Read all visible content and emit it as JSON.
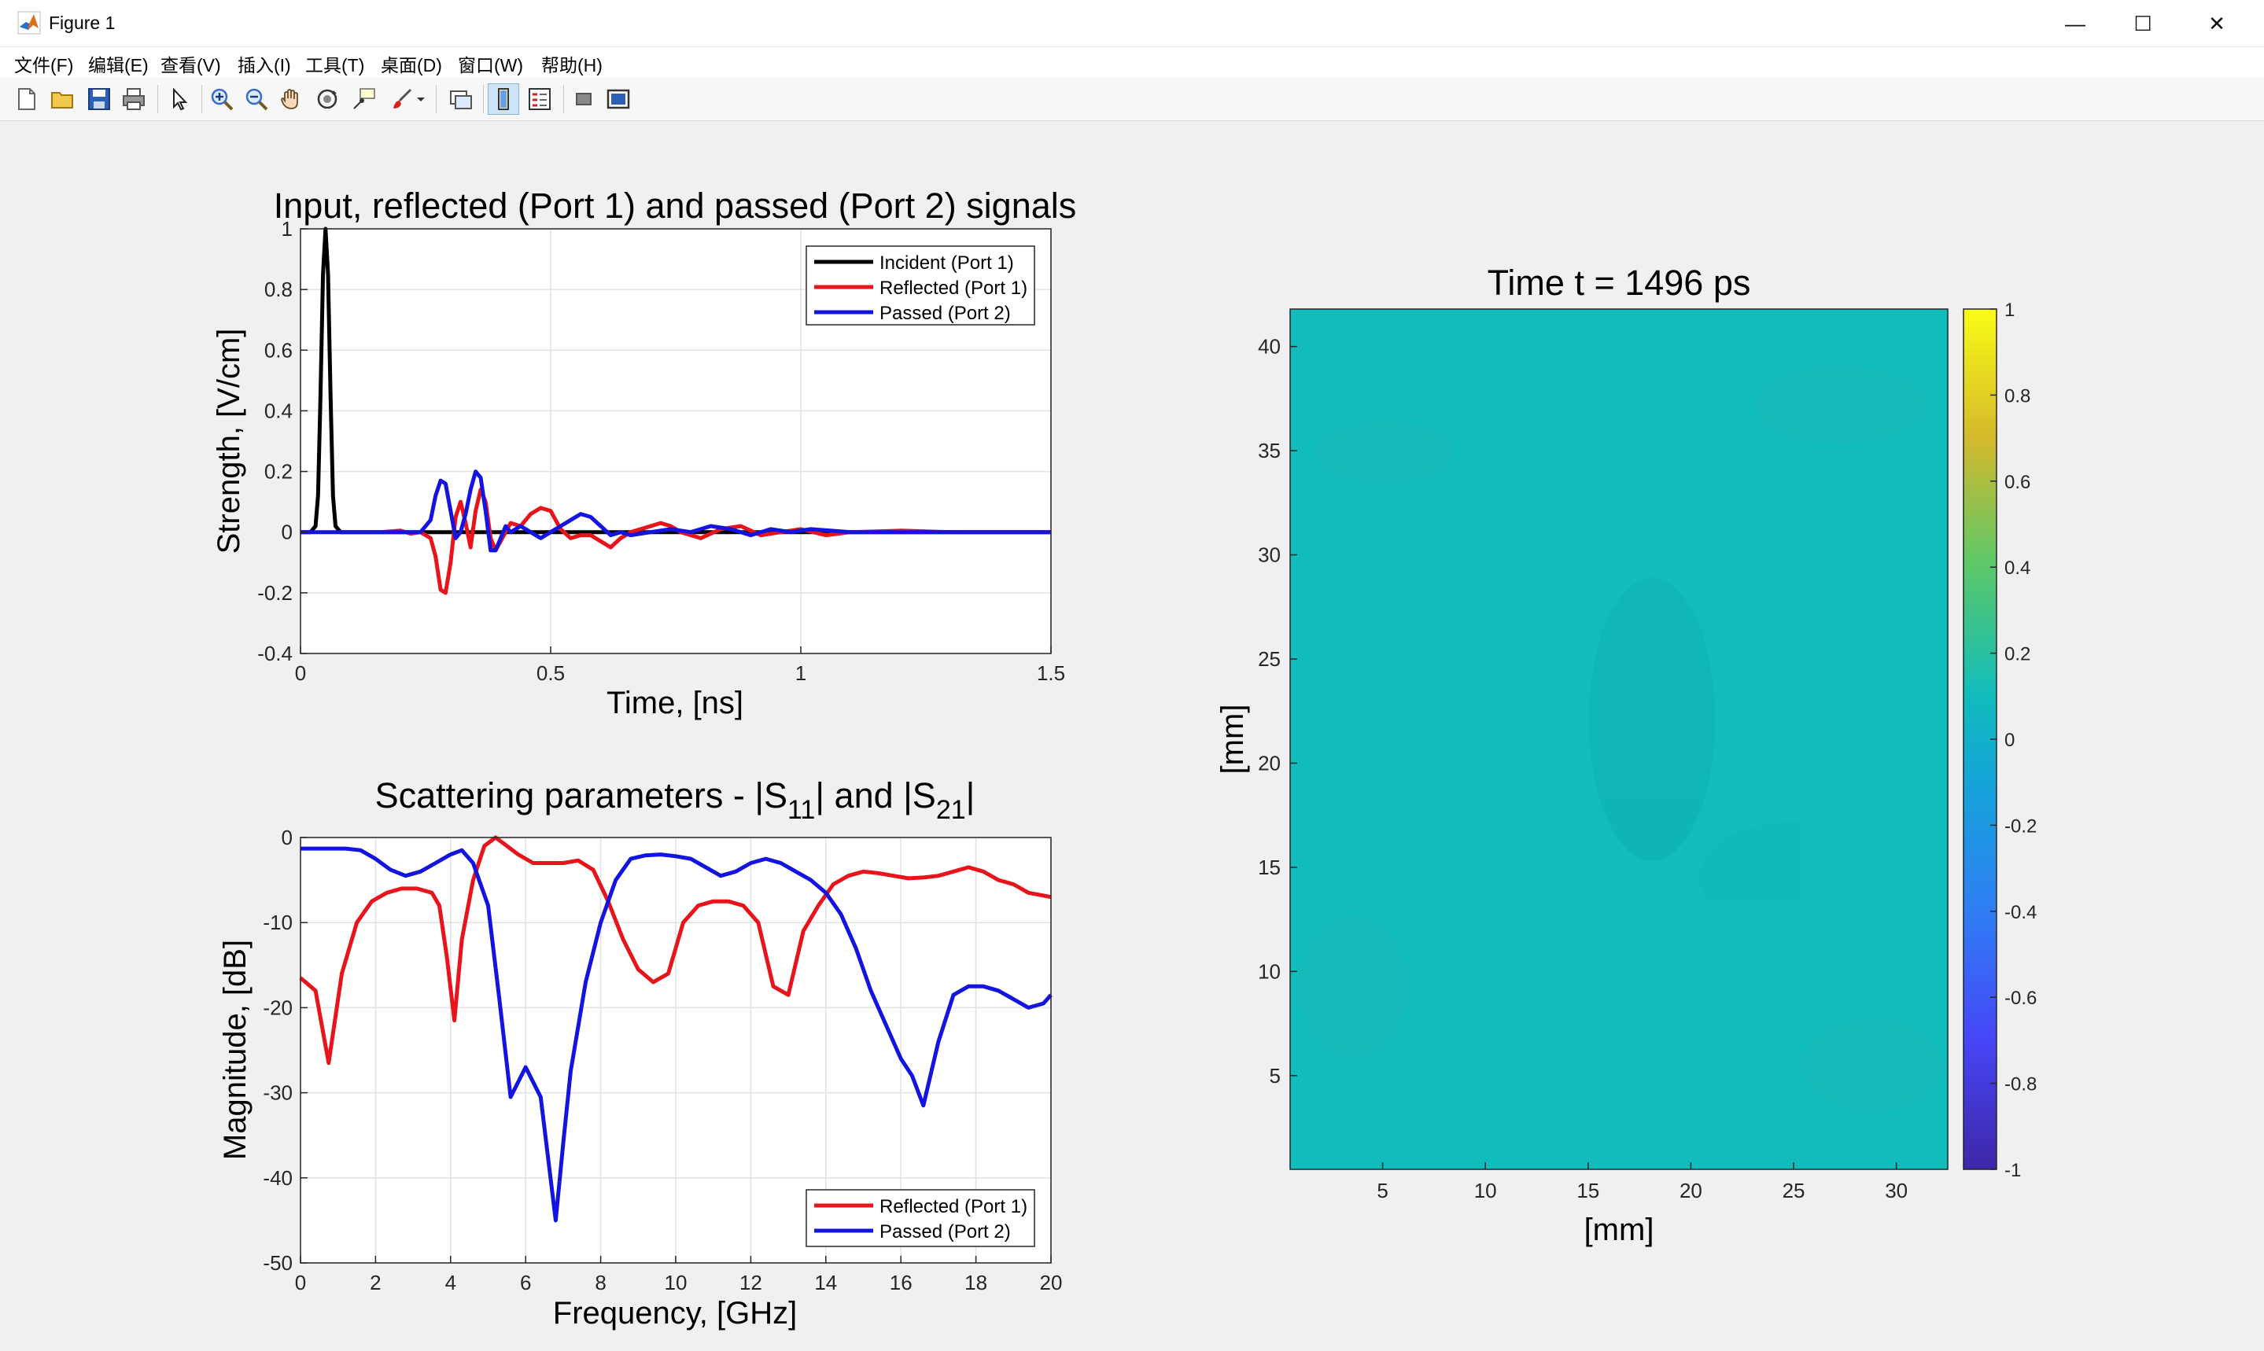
{
  "window": {
    "title": "Figure 1",
    "min_glyph": "—",
    "max_glyph": "☐",
    "close_glyph": "✕"
  },
  "menu": [
    {
      "label": "文件(F)"
    },
    {
      "label": "编辑(E)"
    },
    {
      "label": "查看(V)"
    },
    {
      "label": "插入(I)"
    },
    {
      "label": "工具(T)"
    },
    {
      "label": "桌面(D)"
    },
    {
      "label": "窗口(W)"
    },
    {
      "label": "帮助(H)"
    }
  ],
  "toolbar": [
    "new-figure-icon",
    "open-file-icon",
    "save-icon",
    "print-icon",
    "select-arrow-icon",
    "zoom-in-icon",
    "zoom-out-icon",
    "pan-hand-icon",
    "rotate-3d-icon",
    "data-cursor-icon",
    "brush-icon",
    "brush-dropdown-icon",
    "link-plot-icon",
    "colorbar-icon",
    "legend-icon",
    "hide-tools-icon",
    "show-tools-icon"
  ],
  "colors": {
    "incident": "#000000",
    "reflected": "#e8141c",
    "passed": "#1414e0",
    "field": "#10bcbc"
  },
  "chart_data": [
    {
      "type": "line",
      "title": "Input, reflected (Port 1) and passed (Port 2) signals",
      "xlabel": "Time, [ns]",
      "ylabel": "Strength, [V/cm]",
      "xlim": [
        0,
        1.5
      ],
      "ylim": [
        -0.4,
        1
      ],
      "xticks": [
        "0",
        "0.5",
        "1",
        "1.5"
      ],
      "yticks": [
        "-0.4",
        "-0.2",
        "0",
        "0.2",
        "0.4",
        "0.6",
        "0.8",
        "1"
      ],
      "grid": true,
      "legend_position": "top-right",
      "series": [
        {
          "name": "Incident (Port 1)",
          "color_key": "incident",
          "x": [
            0.0,
            0.02,
            0.03,
            0.035,
            0.04,
            0.045,
            0.05,
            0.055,
            0.06,
            0.065,
            0.07,
            0.08,
            0.1,
            1.5
          ],
          "y": [
            0,
            0,
            0.02,
            0.12,
            0.45,
            0.85,
            1.0,
            0.85,
            0.45,
            0.12,
            0.02,
            0,
            0,
            0
          ]
        },
        {
          "name": "Reflected (Port 1)",
          "color_key": "reflected",
          "x": [
            0.16,
            0.2,
            0.22,
            0.24,
            0.26,
            0.27,
            0.28,
            0.29,
            0.3,
            0.31,
            0.32,
            0.33,
            0.34,
            0.35,
            0.36,
            0.37,
            0.38,
            0.39,
            0.4,
            0.42,
            0.44,
            0.46,
            0.48,
            0.5,
            0.52,
            0.54,
            0.56,
            0.58,
            0.6,
            0.62,
            0.64,
            0.66,
            0.7,
            0.72,
            0.74,
            0.76,
            0.8,
            0.84,
            0.88,
            0.92,
            0.96,
            1.0,
            1.05,
            1.1,
            1.2,
            1.3,
            1.5
          ],
          "y": [
            0,
            0.005,
            -0.005,
            0,
            -0.02,
            -0.08,
            -0.19,
            -0.2,
            -0.1,
            0.05,
            0.1,
            0.03,
            -0.05,
            0.07,
            0.14,
            0.1,
            -0.02,
            -0.06,
            -0.03,
            0.03,
            0.02,
            0.06,
            0.08,
            0.07,
            0.01,
            -0.02,
            -0.01,
            -0.01,
            -0.03,
            -0.05,
            -0.02,
            0.0,
            0.02,
            0.03,
            0.02,
            0.0,
            -0.02,
            0.01,
            0.02,
            -0.01,
            0.0,
            0.01,
            -0.01,
            0.0,
            0.005,
            0.0,
            0.0
          ]
        },
        {
          "name": "Passed (Port 2)",
          "color_key": "passed",
          "x": [
            0.0,
            0.24,
            0.26,
            0.27,
            0.28,
            0.29,
            0.3,
            0.31,
            0.32,
            0.33,
            0.34,
            0.35,
            0.36,
            0.37,
            0.38,
            0.39,
            0.4,
            0.41,
            0.42,
            0.44,
            0.46,
            0.48,
            0.5,
            0.52,
            0.54,
            0.56,
            0.58,
            0.6,
            0.62,
            0.64,
            0.66,
            0.7,
            0.74,
            0.78,
            0.82,
            0.86,
            0.9,
            0.94,
            0.98,
            1.02,
            1.1,
            1.2,
            1.5
          ],
          "y": [
            0,
            0,
            0.04,
            0.12,
            0.17,
            0.16,
            0.07,
            -0.02,
            0.0,
            0.06,
            0.14,
            0.2,
            0.18,
            0.07,
            -0.06,
            -0.06,
            -0.02,
            0.02,
            0.0,
            0.02,
            0.0,
            -0.02,
            0.0,
            0.02,
            0.04,
            0.06,
            0.05,
            0.02,
            -0.01,
            0.0,
            -0.01,
            0.0,
            0.01,
            0.0,
            0.02,
            0.01,
            -0.01,
            0.01,
            0.0,
            0.01,
            0.0,
            0.0,
            0.0
          ]
        }
      ]
    },
    {
      "type": "line",
      "title": "Scattering parameters - |S",
      "title_sub1": "11",
      "title_mid": "| and |S",
      "title_sub2": "21",
      "title_end": "|",
      "xlabel": "Frequency, [GHz]",
      "ylabel": "Magnitude, [dB]",
      "xlim": [
        0,
        20
      ],
      "ylim": [
        -50,
        0
      ],
      "xticks": [
        "0",
        "2",
        "4",
        "6",
        "8",
        "10",
        "12",
        "14",
        "16",
        "18",
        "20"
      ],
      "yticks": [
        "-50",
        "-40",
        "-30",
        "-20",
        "-10",
        "0"
      ],
      "grid": true,
      "legend_position": "bottom-right",
      "series": [
        {
          "name": "Reflected (Port 1)",
          "color_key": "reflected",
          "x": [
            0,
            0.4,
            0.75,
            1.1,
            1.5,
            1.9,
            2.3,
            2.7,
            3.1,
            3.5,
            3.7,
            3.9,
            4.1,
            4.3,
            4.6,
            4.9,
            5.2,
            5.5,
            5.8,
            6.2,
            6.6,
            7.0,
            7.4,
            7.8,
            8.2,
            8.6,
            9.0,
            9.4,
            9.8,
            10.2,
            10.6,
            11.0,
            11.4,
            11.8,
            12.2,
            12.6,
            13.0,
            13.4,
            13.8,
            14.2,
            14.6,
            15.0,
            15.4,
            15.8,
            16.2,
            16.6,
            17.0,
            17.4,
            17.8,
            18.2,
            18.6,
            19.0,
            19.4,
            20.0
          ],
          "y": [
            -16.5,
            -18,
            -26.5,
            -16,
            -10,
            -7.5,
            -6.5,
            -6,
            -6,
            -6.5,
            -8,
            -14,
            -21.5,
            -12,
            -5,
            -1,
            0,
            -1,
            -2,
            -3,
            -3,
            -3,
            -2.7,
            -3.8,
            -7.5,
            -12,
            -15.5,
            -17,
            -16,
            -10,
            -8,
            -7.5,
            -7.5,
            -8,
            -10,
            -17.5,
            -18.5,
            -11,
            -8,
            -5.5,
            -4.5,
            -4,
            -4.2,
            -4.5,
            -4.8,
            -4.7,
            -4.5,
            -4,
            -3.5,
            -4,
            -5,
            -5.5,
            -6.5,
            -7
          ]
        },
        {
          "name": "Passed (Port 2)",
          "color_key": "passed",
          "x": [
            0,
            0.6,
            1.2,
            1.6,
            2.0,
            2.4,
            2.8,
            3.2,
            3.6,
            4.0,
            4.3,
            4.6,
            5.0,
            5.3,
            5.6,
            6.0,
            6.4,
            6.8,
            7.0,
            7.2,
            7.6,
            8.0,
            8.4,
            8.8,
            9.2,
            9.6,
            10.0,
            10.4,
            10.8,
            11.2,
            11.6,
            12.0,
            12.4,
            12.8,
            13.2,
            13.6,
            14.0,
            14.4,
            14.8,
            15.2,
            15.6,
            16.0,
            16.3,
            16.6,
            17.0,
            17.4,
            17.8,
            18.2,
            18.6,
            19.0,
            19.4,
            19.8,
            20.0
          ],
          "y": [
            -1.3,
            -1.3,
            -1.3,
            -1.5,
            -2.5,
            -3.8,
            -4.5,
            -4,
            -3,
            -2,
            -1.5,
            -3,
            -8,
            -19,
            -30.5,
            -27,
            -30.5,
            -45,
            -36,
            -27.5,
            -17,
            -10,
            -5,
            -2.5,
            -2.1,
            -2,
            -2.2,
            -2.5,
            -3.5,
            -4.5,
            -4,
            -3,
            -2.5,
            -3,
            -4,
            -5,
            -6.5,
            -9,
            -13,
            -18,
            -22,
            -26,
            -28,
            -31.5,
            -24,
            -18.5,
            -17.5,
            -17.5,
            -18,
            -19,
            -20,
            -19.5,
            -18.5
          ]
        }
      ]
    },
    {
      "type": "heatmap",
      "title": "Time t = 1496 ps",
      "xlabel": "[mm]",
      "ylabel": "[mm]",
      "xlim": [
        0.5,
        32.5
      ],
      "ylim": [
        0.5,
        41.8
      ],
      "xticks": [
        "5",
        "10",
        "15",
        "20",
        "25",
        "30"
      ],
      "yticks": [
        "5",
        "10",
        "15",
        "20",
        "25",
        "30",
        "35",
        "40"
      ],
      "color_range": [
        -1,
        1
      ],
      "colorbar_ticks": [
        "-1",
        "-0.8",
        "-0.6",
        "-0.4",
        "-0.2",
        "0",
        "0.2",
        "0.4",
        "0.6",
        "0.8",
        "1"
      ],
      "field_value": 0.0
    }
  ]
}
